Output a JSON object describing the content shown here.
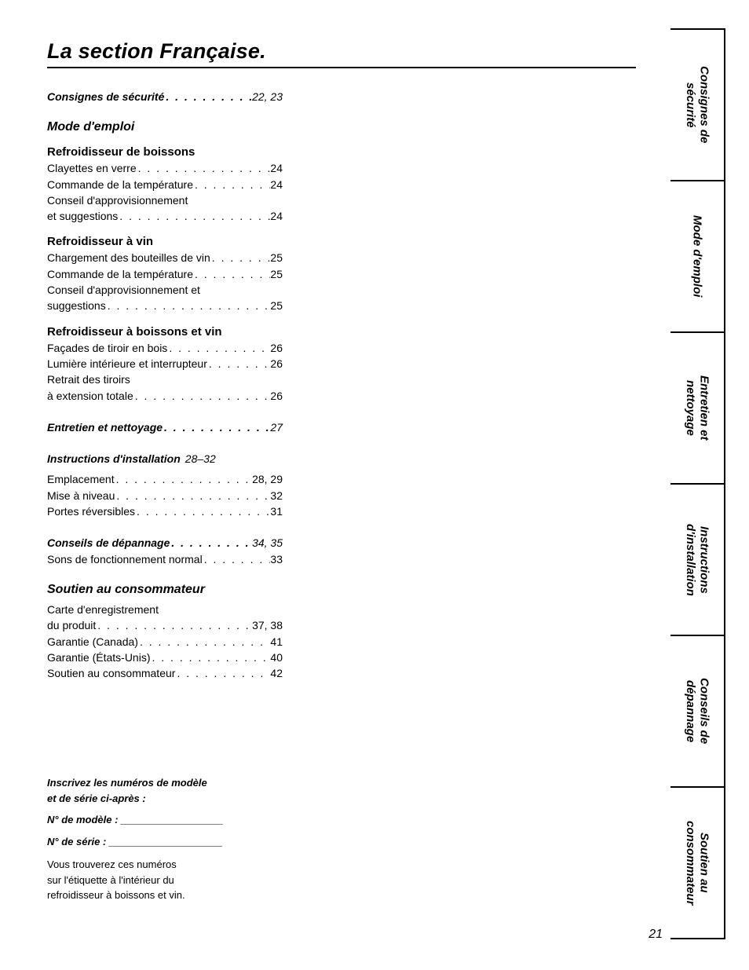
{
  "title": "La section Française.",
  "page_number": "21",
  "toc": {
    "consignes": {
      "label": "Consignes de sécurité",
      "pages": "22, 23"
    },
    "mode": {
      "label": "Mode d'emploi"
    },
    "sec_boissons": {
      "heading": "Refroidisseur de boissons",
      "rows": [
        {
          "label": "Clayettes en verre",
          "pg": "24"
        },
        {
          "label": "Commande de la température",
          "pg": "24"
        },
        {
          "label_line1": "Conseil d'approvisionnement",
          "label_line2": "et suggestions",
          "pg": "24"
        }
      ]
    },
    "sec_vin": {
      "heading": "Refroidisseur à vin",
      "rows": [
        {
          "label": "Chargement des bouteilles de vin",
          "pg": "25"
        },
        {
          "label": "Commande de la température",
          "pg": "25"
        },
        {
          "label_line1": "Conseil d'approvisionnement et",
          "label_line2": "suggestions",
          "pg": "25"
        }
      ]
    },
    "sec_both": {
      "heading": "Refroidisseur à boissons et vin",
      "rows": [
        {
          "label": "Façades de tiroir en bois",
          "pg": "26"
        },
        {
          "label": "Lumière intérieure et interrupteur",
          "pg": "26"
        },
        {
          "label_line1": "Retrait des tiroirs",
          "label_line2": "à extension totale",
          "pg": "26"
        }
      ]
    },
    "entretien": {
      "label": "Entretien et nettoyage",
      "pages": "27"
    },
    "install": {
      "label": "Instructions d'installation",
      "pages": "28–32",
      "rows": [
        {
          "label": "Emplacement",
          "pg": "28, 29"
        },
        {
          "label": "Mise à niveau",
          "pg": "32"
        },
        {
          "label": "Portes réversibles",
          "pg": "31"
        }
      ]
    },
    "depannage": {
      "label": "Conseils de dépannage",
      "pages": "34, 35",
      "rows": [
        {
          "label": "Sons de fonctionnement normal",
          "pg": "33"
        }
      ]
    },
    "soutien": {
      "label": "Soutien au consommateur",
      "rows": [
        {
          "label_line1": "Carte d'enregistrement",
          "label_line2": "du produit",
          "pg": "37, 38"
        },
        {
          "label": "Garantie (Canada)",
          "pg": "41"
        },
        {
          "label": "Garantie (États-Unis)",
          "pg": "40"
        },
        {
          "label": "Soutien au consommateur",
          "pg": "42"
        }
      ]
    }
  },
  "model_block": {
    "header_line1": "Inscrivez les numéros de modèle",
    "header_line2": "et de série ci-après :",
    "model_label": "N° de modèle : __________________",
    "serial_label": "N° de série : ____________________",
    "note_line1": "Vous trouverez ces numéros",
    "note_line2": "sur l'étiquette à l'intérieur du",
    "note_line3": "refroidisseur à boissons et vin."
  },
  "tabs": [
    "Consignes de\nsécurité",
    "Mode d'emploi",
    "Entretien et\nnettoyage",
    "Instructions\nd'installation",
    "Conseils de\ndépannage",
    "Soutien au\nconsommateur"
  ],
  "dots": ". . . . . . . . . . . . . . . . . . . . . . . . . . . . . . . . . . . . . . . ."
}
